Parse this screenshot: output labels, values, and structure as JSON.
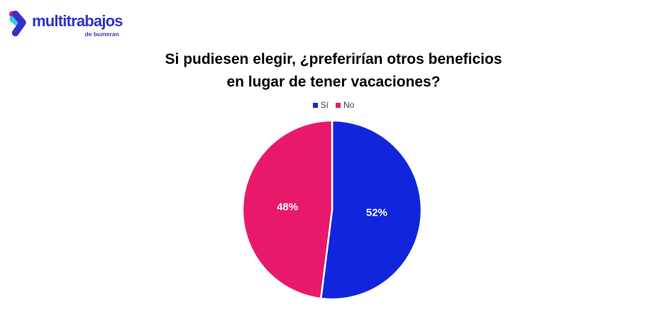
{
  "logo": {
    "brand": "multitrabajos",
    "sub": "de bumeran"
  },
  "title": {
    "line1": "Si pudiesen elegir, ¿preferirían otros beneficios",
    "line2": "en lugar de tener vacaciones?"
  },
  "chart_data": {
    "type": "pie",
    "title": "Si pudiesen elegir, ¿preferirían otros beneficios en lugar de tener vacaciones?",
    "categories": [
      "Sí",
      "No"
    ],
    "values": [
      52,
      48
    ],
    "value_labels": [
      "52%",
      "48%"
    ],
    "colors": [
      "#1126dc",
      "#e8196b"
    ],
    "start_angle_deg": 0,
    "direction": "clockwise",
    "legend_position": "top",
    "label_color": "#ffffff"
  },
  "colors": {
    "logo_blue": "#3232c8",
    "logo_pink": "#e8157e",
    "logo_cyan": "#2ecce8",
    "title_text": "#000000",
    "legend_text": "#404040"
  }
}
